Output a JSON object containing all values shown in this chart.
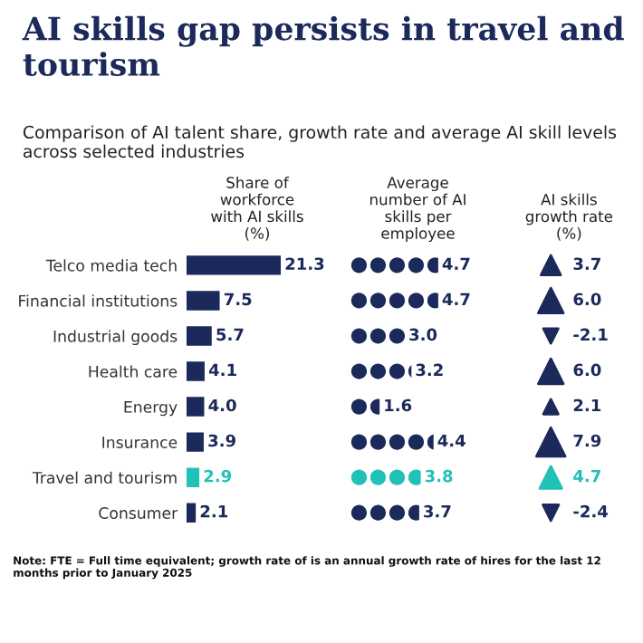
{
  "chart_data": [
    {
      "type": "bar",
      "orientation": "horizontal",
      "title": "AI skills gap persists in travel and tourism",
      "subtitle": "Comparison of AI talent share, growth rate and average AI skill levels across selected industries",
      "xlabel": "Share of workforce with AI skills (%)",
      "categories": [
        "Telco media tech",
        "Financial institutions",
        "Industrial goods",
        "Health care",
        "Energy",
        "Insurance",
        "Travel and tourism",
        "Consumer"
      ],
      "values": [
        21.3,
        7.5,
        5.7,
        4.1,
        4.0,
        3.9,
        2.9,
        2.1
      ],
      "value_labels": [
        "21.3",
        "7.5",
        "5.7",
        "4.1",
        "4.0",
        "3.9",
        "2.9",
        "2.1"
      ],
      "colors": [
        "#1b2a5a",
        "#1b2a5a",
        "#1b2a5a",
        "#1b2a5a",
        "#1b2a5a",
        "#1b2a5a",
        "#22c1b8",
        "#1b2a5a"
      ],
      "annotations": [
        "Note: FTE = Full time equivalent; growth rate of is an annual growth rate of hires for the last 12 months prior to January 2025"
      ]
    },
    {
      "type": "other",
      "xlabel": "Average number of AI skills per employee",
      "categories": [
        null,
        null,
        null,
        null,
        null,
        null,
        null,
        null
      ],
      "values": [
        4.7,
        4.7,
        3.0,
        3.2,
        1.6,
        4.4,
        3.8,
        3.7
      ],
      "value_labels": [
        "4.7",
        "4.7",
        "3.0",
        "3.2",
        "1.6",
        "4.4",
        "3.8",
        "3.7"
      ],
      "colors": [
        "#1b2a5a",
        "#1b2a5a",
        "#1b2a5a",
        "#1b2a5a",
        "#1b2a5a",
        "#1b2a5a",
        "#22c1b8",
        "#1b2a5a"
      ]
    },
    {
      "type": "other",
      "xlabel": "AI skills growth rate (%)",
      "categories": [
        null,
        null,
        null,
        null,
        null,
        null,
        null,
        null
      ],
      "values": [
        3.7,
        6.0,
        -2.1,
        6.0,
        2.1,
        7.9,
        4.7,
        -2.4
      ],
      "value_labels": [
        "3.7",
        "6.0",
        "-2.1",
        "6.0",
        "2.1",
        "7.9",
        "4.7",
        "-2.4"
      ],
      "colors": [
        "#1b2a5a",
        "#1b2a5a",
        "#1b2a5a",
        "#1b2a5a",
        "#1b2a5a",
        "#1b2a5a",
        "#22c1b8",
        "#1b2a5a"
      ]
    }
  ]
}
